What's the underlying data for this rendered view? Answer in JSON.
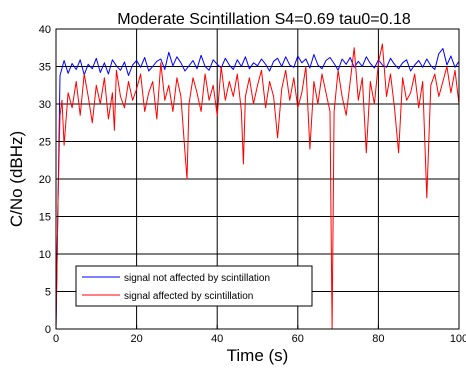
{
  "chart_data": {
    "type": "line",
    "title": "Moderate Scintillation S4=0.69 tau0=0.18",
    "xlabel": "Time (s)",
    "ylabel": "C/No (dBHz)",
    "xlim": [
      0,
      100
    ],
    "ylim": [
      0,
      40
    ],
    "xticks": [
      0,
      20,
      40,
      60,
      80,
      100
    ],
    "yticks": [
      0,
      5,
      10,
      15,
      20,
      25,
      30,
      35,
      40
    ],
    "xtick_labels": [
      "0",
      "20",
      "40",
      "60",
      "80",
      "100"
    ],
    "ytick_labels": [
      "0",
      "5",
      "10",
      "15",
      "20",
      "25",
      "30",
      "35",
      "40"
    ],
    "grid": true,
    "legend_position": "bottom-left",
    "series": [
      {
        "name": "signal not affected by scintillation",
        "color": "#0000ff",
        "x": [
          0,
          1,
          2,
          3,
          4,
          5,
          6,
          7,
          8,
          9,
          10,
          11,
          12,
          13,
          14,
          15,
          16,
          17,
          18,
          19,
          20,
          21,
          22,
          23,
          24,
          25,
          26,
          27,
          28,
          29,
          30,
          31,
          32,
          33,
          34,
          35,
          36,
          37,
          38,
          39,
          40,
          41,
          42,
          43,
          44,
          45,
          46,
          47,
          48,
          49,
          50,
          51,
          52,
          53,
          54,
          55,
          56,
          57,
          58,
          59,
          60,
          61,
          62,
          63,
          64,
          65,
          66,
          67,
          68,
          69,
          70,
          71,
          72,
          73,
          74,
          75,
          76,
          77,
          78,
          79,
          80,
          81,
          82,
          83,
          84,
          85,
          86,
          87,
          88,
          89,
          90,
          91,
          92,
          93,
          94,
          95,
          96,
          97,
          98,
          99,
          100
        ],
        "y": [
          0,
          33.8,
          35.8,
          34.1,
          35.4,
          34.6,
          35.9,
          33.9,
          35.3,
          34.7,
          36.1,
          34.2,
          35.5,
          34.0,
          35.9,
          35.1,
          34.5,
          35.6,
          33.8,
          35.2,
          35.8,
          34.9,
          36.2,
          34.4,
          35.0,
          35.7,
          36.0,
          34.6,
          36.9,
          35.1,
          36.3,
          35.5,
          34.4,
          35.1,
          35.8,
          34.7,
          36.5,
          35.0,
          34.5,
          35.9,
          35.3,
          34.8,
          36.1,
          35.2,
          34.6,
          35.9,
          35.0,
          36.3,
          34.7,
          35.5,
          35.1,
          36.0,
          35.3,
          34.4,
          35.7,
          36.1,
          35.0,
          36.3,
          35.2,
          34.9,
          36.4,
          35.5,
          36.0,
          34.8,
          36.6,
          35.2,
          34.7,
          35.8,
          36.2,
          35.4,
          34.5,
          36.0,
          35.3,
          36.2,
          34.9,
          35.7,
          35.0,
          36.3,
          35.4,
          34.8,
          35.9,
          35.2,
          34.9,
          36.1,
          35.3,
          34.7,
          35.5,
          35.9,
          34.4,
          35.2,
          35.8,
          34.9,
          36.0,
          35.1,
          34.6,
          36.7,
          37.4,
          35.2,
          36.4,
          34.9,
          35.7
        ]
      },
      {
        "name": "signal affected by scintillation",
        "color": "#ff0000",
        "x": [
          0,
          0.5,
          1,
          1.5,
          2,
          3,
          4,
          5,
          6,
          7,
          8,
          9,
          10,
          11,
          12,
          13,
          14,
          14.5,
          15,
          16,
          17,
          18,
          19,
          20,
          21,
          22,
          23,
          24,
          25,
          26,
          27,
          28,
          29,
          30,
          31,
          32,
          32.5,
          33,
          34,
          35,
          36,
          37,
          38,
          39,
          40,
          41,
          42,
          43,
          44,
          45,
          46,
          46.5,
          47,
          48,
          49,
          50,
          51,
          52,
          53,
          54,
          55,
          56,
          57,
          58,
          59,
          60,
          61,
          62,
          63,
          64,
          65,
          66,
          67,
          68,
          68.5,
          69,
          70,
          71,
          72,
          73,
          74,
          75,
          76,
          77,
          78,
          79,
          80,
          81,
          82,
          83,
          84,
          85,
          86,
          87,
          88,
          89,
          90,
          91,
          92,
          93,
          94,
          95,
          96,
          97,
          98,
          99,
          100
        ],
        "y": [
          0,
          17,
          28.5,
          30.5,
          24.5,
          31.5,
          29.5,
          33,
          28.5,
          34,
          31,
          27.5,
          32.5,
          30,
          33.5,
          28,
          31.5,
          26.5,
          34.5,
          31,
          29.5,
          33,
          30.5,
          32,
          34,
          29,
          31.5,
          33,
          28,
          35.5,
          30.5,
          32.5,
          29,
          33.5,
          31,
          23.5,
          20,
          30,
          33.5,
          31.5,
          29,
          34,
          30.5,
          32.5,
          28.5,
          35,
          30.5,
          33,
          31,
          34,
          29,
          22,
          31,
          33.5,
          30,
          32.5,
          34.5,
          29.5,
          33,
          31,
          25.5,
          32,
          34.5,
          30.5,
          33.5,
          29.5,
          31.5,
          35,
          24,
          33,
          30,
          34,
          31.5,
          29,
          0,
          29,
          34.5,
          31,
          28.5,
          33,
          37.5,
          30.5,
          33.5,
          23.5,
          33,
          30,
          35.5,
          38,
          31,
          34,
          29.5,
          23.5,
          33.5,
          30.5,
          31.5,
          34,
          29.5,
          33,
          17.5,
          32.5,
          34,
          31,
          33,
          35,
          31.5,
          34.5,
          30
        ]
      }
    ]
  }
}
